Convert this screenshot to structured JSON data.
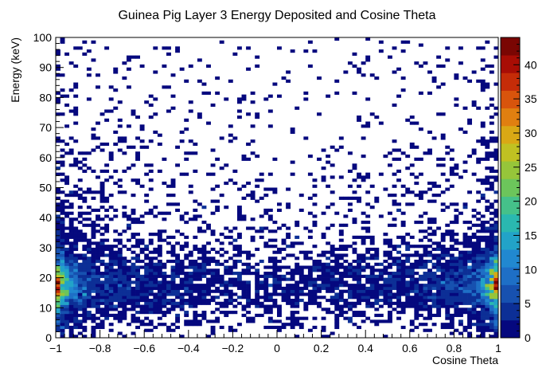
{
  "chart_data": {
    "type": "heatmap",
    "title": "Guinea Pig Layer 3 Energy Deposited and Cosine Theta",
    "xlabel": "Cosine Theta",
    "ylabel": "Energy (keV)",
    "xlim": [
      -1,
      1
    ],
    "ylim": [
      0,
      100
    ],
    "x_ticks": [
      "−1",
      "−0.8",
      "−0.6",
      "−0.4",
      "−0.2",
      "0",
      "0.2",
      "0.4",
      "0.6",
      "0.8",
      "1"
    ],
    "y_ticks": [
      "0",
      "10",
      "20",
      "30",
      "40",
      "50",
      "60",
      "70",
      "80",
      "90",
      "100"
    ],
    "colorbar": {
      "range": [
        0,
        44
      ],
      "ticks": [
        "0",
        "5",
        "10",
        "15",
        "20",
        "25",
        "30",
        "35",
        "40"
      ]
    },
    "bins": {
      "x": 100,
      "y": 100
    },
    "density_profile": {
      "edge_peak_cos": 0.98,
      "energy_peak": 18,
      "max_count": 43
    },
    "grid": false,
    "legend": "none"
  },
  "colors": {
    "palette": [
      "#05087e",
      "#0c2f96",
      "#1751b0",
      "#1e6fc6",
      "#2188d0",
      "#22a3c8",
      "#2ab8b0",
      "#45c18a",
      "#6cc55b",
      "#96c53a",
      "#c0c122",
      "#d9a815",
      "#e07f10",
      "#d8540c",
      "#c52c08",
      "#a80d05",
      "#7a0603"
    ]
  }
}
